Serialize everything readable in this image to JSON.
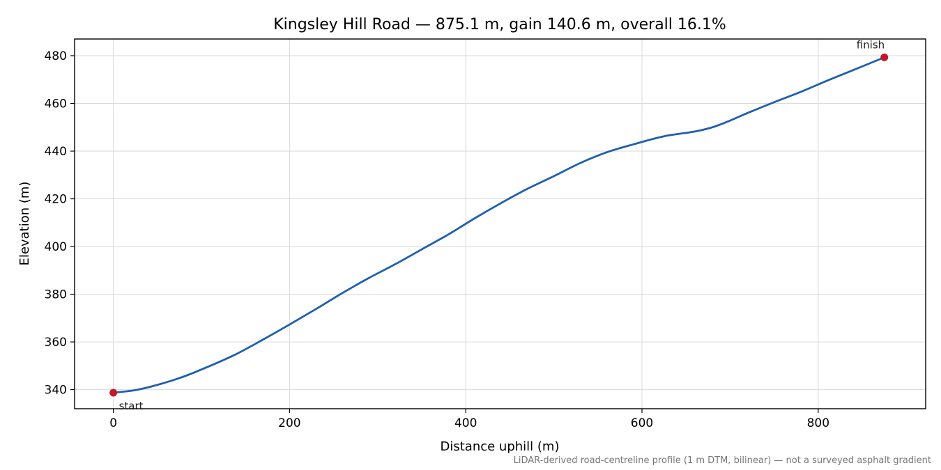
{
  "chart_data": {
    "type": "line",
    "title": "Kingsley Hill Road — 875.1 m, gain 140.6 m, overall 16.1%",
    "xlabel": "Distance uphill (m)",
    "ylabel": "Elevation (m)",
    "xlim": [
      -44,
      922
    ],
    "ylim": [
      332,
      487
    ],
    "xticks": [
      0,
      200,
      400,
      600,
      800
    ],
    "yticks": [
      340,
      360,
      380,
      400,
      420,
      440,
      460,
      480
    ],
    "grid": true,
    "line_color": "#1f5fae",
    "marker_color": "#c0192a",
    "series": [
      {
        "x": [
          0,
          25,
          50,
          80,
          110,
          140,
          170,
          200,
          230,
          260,
          290,
          320,
          350,
          380,
          410,
          440,
          470,
          500,
          530,
          560,
          590,
          625,
          660,
          680,
          700,
          720,
          750,
          780,
          810,
          840,
          875.1
        ],
        "y": [
          338.7,
          339.8,
          342.0,
          345.5,
          350.0,
          355.0,
          361.0,
          367.3,
          373.8,
          380.5,
          386.8,
          392.6,
          398.8,
          405.0,
          411.8,
          418.2,
          424.2,
          429.5,
          435.0,
          439.5,
          442.8,
          446.2,
          448.2,
          450.0,
          452.8,
          456.0,
          460.5,
          464.8,
          469.5,
          474.0,
          479.3
        ]
      }
    ],
    "markers": [
      {
        "label": "start",
        "x": 0,
        "y": 338.7
      },
      {
        "label": "finish",
        "x": 875.1,
        "y": 479.3
      }
    ],
    "footnote": "LiDAR-derived road-centreline profile (1 m DTM, bilinear) — not a surveyed asphalt gradient"
  }
}
